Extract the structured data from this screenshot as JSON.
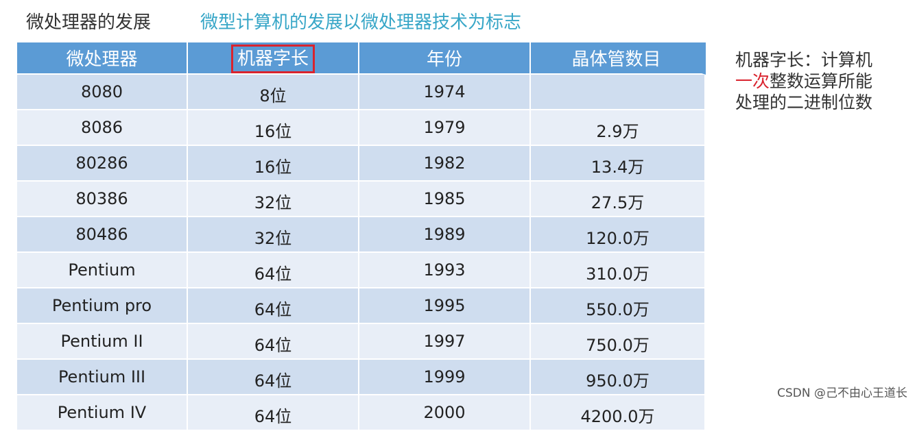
{
  "heading": {
    "title": "微处理器的发展",
    "subtitle": "微型计算机的发展以微处理器技术为标志"
  },
  "table": {
    "headers": [
      "微处理器",
      "机器字长",
      "年份",
      "晶体管数目"
    ],
    "rows": [
      {
        "cpu": "8080",
        "bits": "8位",
        "year": "1974",
        "count": ""
      },
      {
        "cpu": "8086",
        "bits": "16位",
        "year": "1979",
        "count": "2.9万"
      },
      {
        "cpu": "80286",
        "bits": "16位",
        "year": "1982",
        "count": "13.4万"
      },
      {
        "cpu": "80386",
        "bits": "32位",
        "year": "1985",
        "count": "27.5万"
      },
      {
        "cpu": "80486",
        "bits": "32位",
        "year": "1989",
        "count": "120.0万"
      },
      {
        "cpu": "Pentium",
        "bits": "64位",
        "year": "1993",
        "count": "310.0万"
      },
      {
        "cpu": "Pentium pro",
        "bits": "64位",
        "year": "1995",
        "count": "550.0万"
      },
      {
        "cpu": "Pentium II",
        "bits": "64位",
        "year": "1997",
        "count": "750.0万"
      },
      {
        "cpu": "Pentium III",
        "bits": "64位",
        "year": "1999",
        "count": "950.0万"
      },
      {
        "cpu": "Pentium IV",
        "bits": "64位",
        "year": "2000",
        "count": "4200.0万"
      }
    ]
  },
  "note": {
    "line1": "机器字长：计算机",
    "line2_red": "一次",
    "line2_rest": "整数运算所能",
    "line3": "处理的二进制位数"
  },
  "watermark": "CSDN @己不由心王道长",
  "colors": {
    "header_bg": "#5b9bd5",
    "row_odd": "#cfddef",
    "row_even": "#e8eef7",
    "subtitle": "#37a6c7",
    "highlight": "#d9232e"
  }
}
